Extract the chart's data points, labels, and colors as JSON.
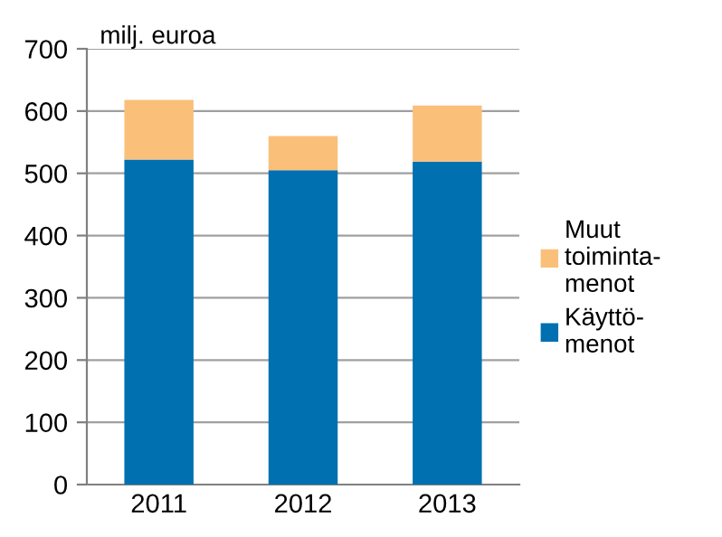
{
  "chart_data": {
    "type": "bar",
    "ylabel": "milj. euroa",
    "categories": [
      "2011",
      "2012",
      "2013"
    ],
    "stacked": true,
    "series": [
      {
        "name": "Käyttö-\nmenot",
        "color": "#0070b0",
        "values": [
          522,
          505,
          519
        ]
      },
      {
        "name": "Muut\ntoiminta-\nmenot",
        "color": "#fac07a",
        "values": [
          96,
          55,
          90
        ]
      }
    ],
    "ylim": [
      0,
      700
    ],
    "yticks": [
      0,
      100,
      200,
      300,
      400,
      500,
      600,
      700
    ],
    "grid": "y",
    "legend": "right"
  }
}
